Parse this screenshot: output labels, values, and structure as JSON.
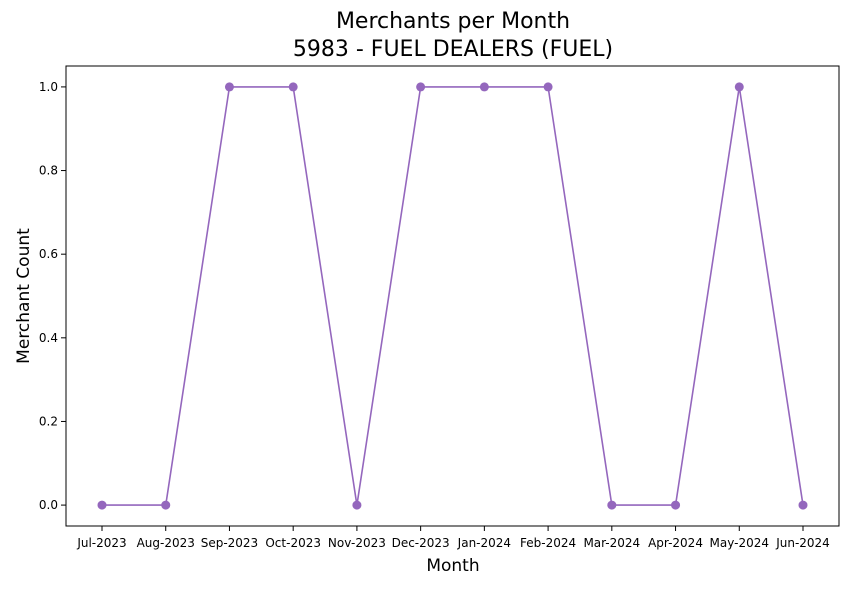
{
  "chart_data": {
    "type": "line",
    "title": "Merchants per Month",
    "subtitle": "5983 - FUEL DEALERS (FUEL)",
    "xlabel": "Month",
    "ylabel": "Merchant Count",
    "categories": [
      "Jul-2023",
      "Aug-2023",
      "Sep-2023",
      "Oct-2023",
      "Nov-2023",
      "Dec-2023",
      "Jan-2024",
      "Feb-2024",
      "Mar-2024",
      "Apr-2024",
      "May-2024",
      "Jun-2024"
    ],
    "series": [
      {
        "values": [
          0,
          0,
          1,
          1,
          0,
          1,
          1,
          1,
          0,
          0,
          1,
          0
        ],
        "color": "#9467bd",
        "marker": "circle"
      }
    ],
    "ylim": [
      -0.05,
      1.05
    ],
    "yticks": [
      0.0,
      0.2,
      0.4,
      0.6,
      0.8,
      1.0
    ],
    "ytick_labels": [
      "0.0",
      "0.2",
      "0.4",
      "0.6",
      "0.8",
      "1.0"
    ],
    "grid": false,
    "legend": "none"
  }
}
